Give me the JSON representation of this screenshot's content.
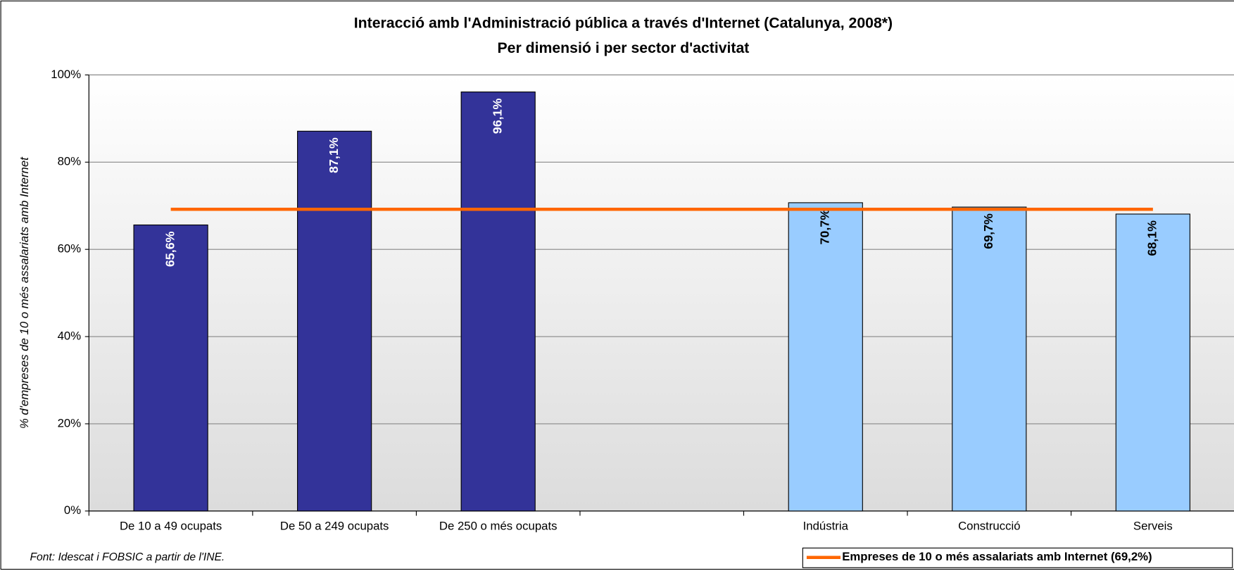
{
  "chart_data": {
    "type": "bar",
    "title": "Interacció amb l'Administració pública a través d'Internet (Catalunya, 2008*)",
    "subtitle": "Per dimensió i per sector d'activitat",
    "y_label": "% d'empreses de 10 o més assalariats amb Internet",
    "source": "Font: Idescat i FOBSIC a partir de l'INE.",
    "categories": [
      "De 10 a 49 ocupats",
      "De 50 a 249 ocupats",
      "De 250 o més ocupats",
      null,
      "Indústria",
      "Construcció",
      "Serveis"
    ],
    "values": [
      65.6,
      87.1,
      96.1,
      null,
      70.7,
      69.7,
      68.1
    ],
    "value_labels": [
      "65,6%",
      "87,1%",
      "96,1%",
      null,
      "70,7%",
      "69,7%",
      "68,1%"
    ],
    "colors": [
      "#333399",
      "#333399",
      "#333399",
      null,
      "#99ccff",
      "#99ccff",
      "#99ccff"
    ],
    "reference_line": {
      "name": "Empreses de 10 o més assalariats amb Internet (69,2%)",
      "value": 69.2,
      "color": "#ff6600"
    },
    "ylim": [
      0,
      100
    ],
    "yticks": [
      {
        "value": 0,
        "label": "0%"
      },
      {
        "value": 20,
        "label": "20%"
      },
      {
        "value": 40,
        "label": "40%"
      },
      {
        "value": 60,
        "label": "60%"
      },
      {
        "value": 80,
        "label": "80%"
      },
      {
        "value": 100,
        "label": "100%"
      }
    ],
    "grid": true
  }
}
